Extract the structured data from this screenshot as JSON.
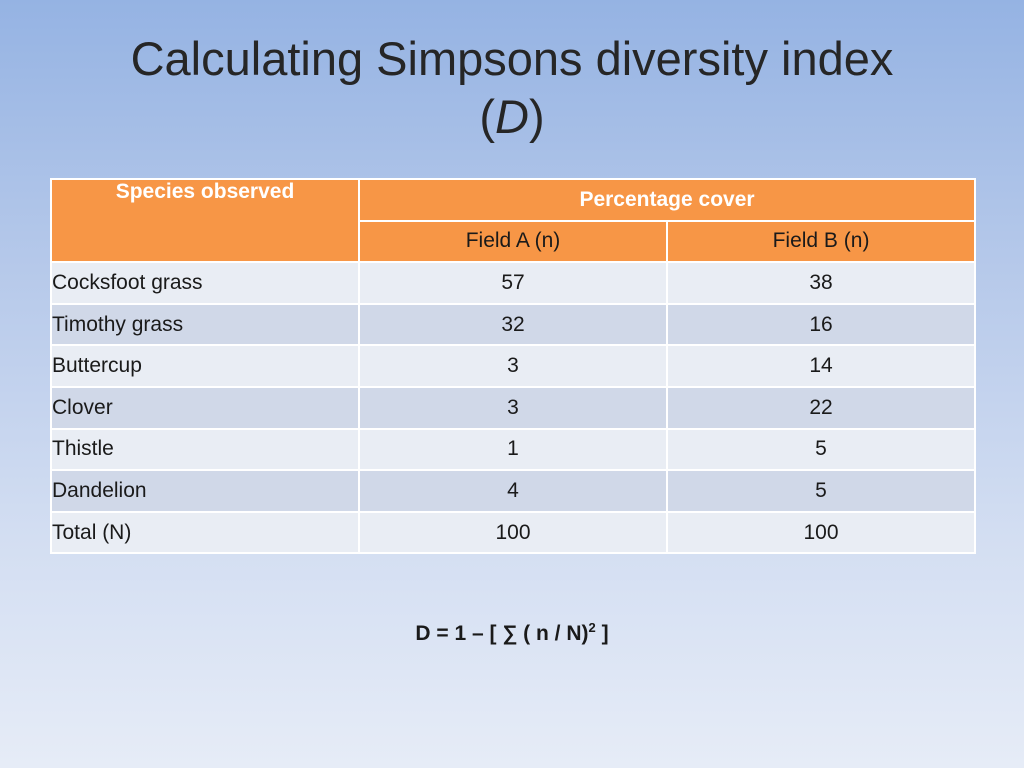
{
  "title": {
    "line1": "Calculating Simpsons diversity index",
    "paren_open": "(",
    "symbol": "D",
    "paren_close": ")"
  },
  "table": {
    "header_species": "Species observed",
    "header_percentage": "Percentage cover",
    "header_field_a": "Field A (n)",
    "header_field_b": "Field B (n)",
    "rows": [
      {
        "species": "Cocksfoot grass",
        "field_a": "57",
        "field_b": "38"
      },
      {
        "species": "Timothy grass",
        "field_a": "32",
        "field_b": "16"
      },
      {
        "species": "Buttercup",
        "field_a": "3",
        "field_b": "14"
      },
      {
        "species": "Clover",
        "field_a": "3",
        "field_b": "22"
      },
      {
        "species": "Thistle",
        "field_a": "1",
        "field_b": "5"
      },
      {
        "species": "Dandelion",
        "field_a": "4",
        "field_b": "5"
      },
      {
        "species": "Total (N)",
        "field_a": "100",
        "field_b": "100"
      }
    ]
  },
  "formula": {
    "main": "D = 1 – [ ∑ ( n / N)",
    "exponent": "2",
    "close": " ]"
  },
  "colors": {
    "header_orange": "#f79646",
    "row_light": "#e9edf4",
    "row_dark": "#d0d8e8"
  }
}
